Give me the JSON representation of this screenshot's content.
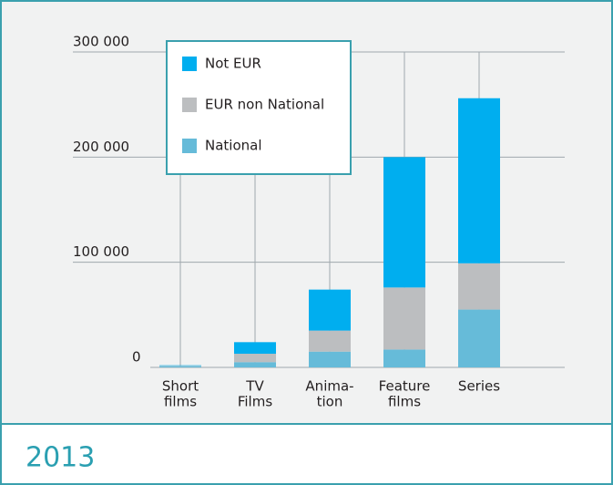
{
  "chart_data": {
    "type": "stacked-bar",
    "title": "2013",
    "categories": [
      [
        "Short",
        "films"
      ],
      [
        "TV",
        "Films"
      ],
      [
        "Anima-",
        "tion"
      ],
      [
        "Feature",
        "films"
      ],
      [
        "Series"
      ]
    ],
    "series": [
      {
        "name": "National",
        "color": "#66bbd9",
        "values": [
          1000,
          5000,
          15000,
          17000,
          55000
        ]
      },
      {
        "name": "EUR non National",
        "color": "#bcbec0",
        "values": [
          500,
          8000,
          20000,
          59000,
          44000
        ]
      },
      {
        "name": "Not EUR",
        "color": "#00aeef",
        "values": [
          500,
          11000,
          39000,
          124000,
          157000
        ]
      }
    ],
    "ylim": [
      0,
      300000
    ],
    "yticks": [
      0,
      {
        "value": 100000,
        "label": "100 000"
      },
      {
        "value": 200000,
        "label": "200 000"
      },
      {
        "value": 300000,
        "label": "300 000"
      }
    ],
    "grid": true,
    "legend": "top-left"
  }
}
